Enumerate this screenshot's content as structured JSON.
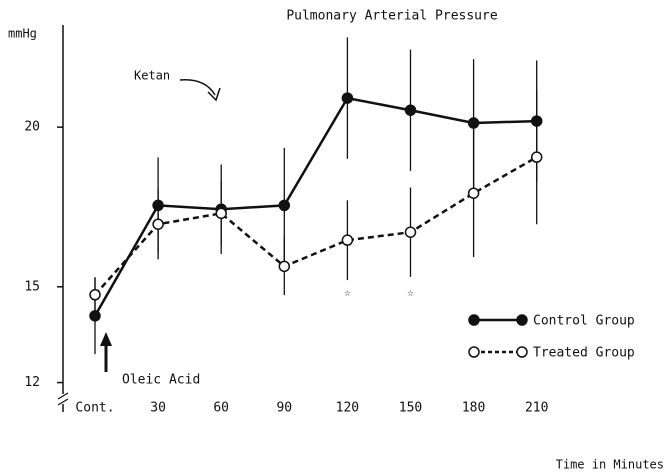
{
  "chart_data": {
    "type": "line",
    "title": "Pulmonary Arterial Pressure",
    "y_label": "mmHg",
    "x_label": "Time in Minutes",
    "categories": [
      "Cont.",
      "30",
      "60",
      "90",
      "120",
      "150",
      "180",
      "210"
    ],
    "ylim": [
      11.25,
      23.2
    ],
    "yticks": [
      12,
      15,
      20
    ],
    "series": [
      {
        "name": "Control Group",
        "color": "#111111",
        "style": "solid",
        "marker": "filled",
        "values": [
          14.09,
          17.55,
          17.43,
          17.55,
          20.91,
          20.53,
          20.13,
          20.19
        ],
        "errors": [
          1.2,
          1.5,
          1.4,
          1.8,
          1.9,
          1.9,
          2.0,
          1.9
        ]
      },
      {
        "name": "Treated Group",
        "color": "#111111",
        "style": "dashed",
        "marker": "open",
        "values": [
          14.75,
          16.96,
          17.3,
          15.64,
          16.46,
          16.71,
          17.93,
          19.06
        ],
        "errors": [
          0.55,
          1.1,
          1.0,
          0.9,
          1.25,
          1.4,
          2.0,
          2.1
        ]
      }
    ],
    "annotations": [
      {
        "text": "Ketan"
      },
      {
        "text": "Oleic Acid"
      },
      {
        "text": "☆",
        "category": "120"
      },
      {
        "text": "☆",
        "category": "150"
      }
    ]
  }
}
